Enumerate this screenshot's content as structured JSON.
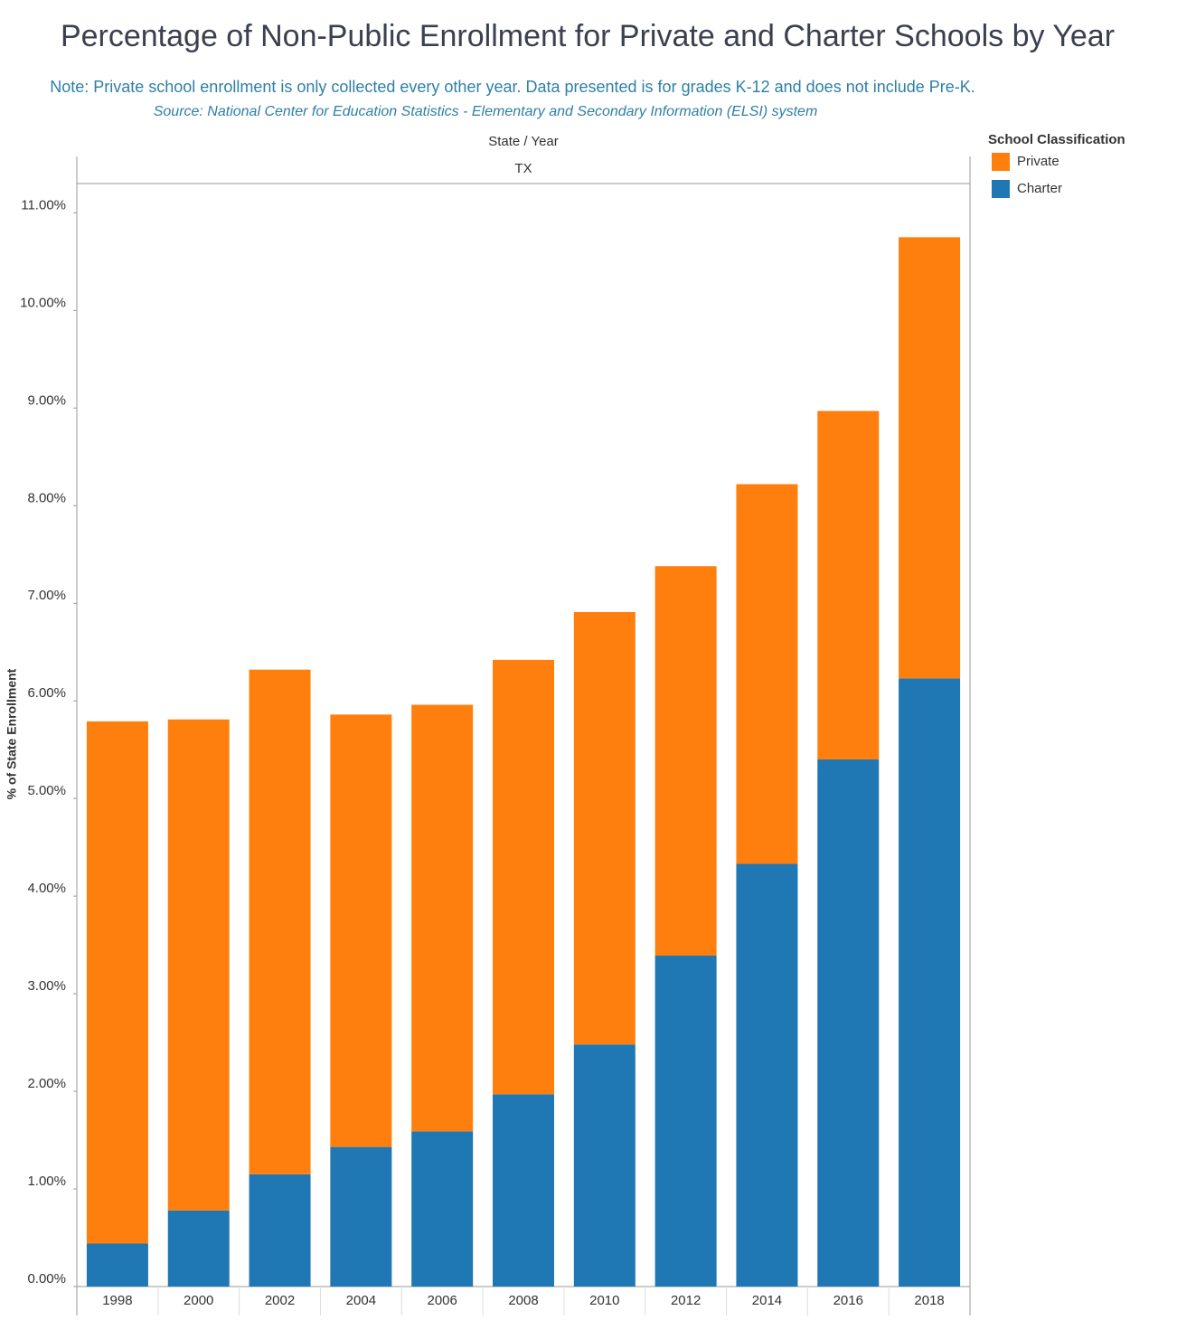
{
  "chart_data": {
    "type": "stacked_bar",
    "title": "Percentage of Non-Public Enrollment for Private and Charter Schools by Year",
    "note": "Note: Private school enrollment is only collected every other year. Data presented is for grades K-12 and does not include Pre-K.",
    "source": "Source: National Center for Education Statistics - Elementary and Secondary Information (ELSI) system",
    "x_header": "State  /  Year",
    "panel": "TX",
    "y_label": "% of State Enrollment",
    "legend_title": "School Classification",
    "legend_position": "right",
    "categories": [
      "1998",
      "2000",
      "2002",
      "2004",
      "2006",
      "2008",
      "2010",
      "2012",
      "2014",
      "2016",
      "2018"
    ],
    "series": [
      {
        "name": "Private",
        "color": "#ff7f0e",
        "values": [
          5.35,
          5.03,
          5.17,
          4.43,
          4.37,
          4.45,
          4.43,
          3.99,
          3.89,
          3.57,
          4.52
        ]
      },
      {
        "name": "Charter",
        "color": "#1f77b4",
        "values": [
          0.44,
          0.78,
          1.15,
          1.43,
          1.59,
          1.97,
          2.48,
          3.39,
          4.33,
          5.4,
          6.23
        ]
      }
    ],
    "ylim": [
      0,
      11.3
    ],
    "yticks": [
      {
        "value": 0,
        "label": "0.00%"
      },
      {
        "value": 1,
        "label": "1.00%"
      },
      {
        "value": 2,
        "label": "2.00%"
      },
      {
        "value": 3,
        "label": "3.00%"
      },
      {
        "value": 4,
        "label": "4.00%"
      },
      {
        "value": 5,
        "label": "5.00%"
      },
      {
        "value": 6,
        "label": "6.00%"
      },
      {
        "value": 7,
        "label": "7.00%"
      },
      {
        "value": 8,
        "label": "8.00%"
      },
      {
        "value": 9,
        "label": "9.00%"
      },
      {
        "value": 10,
        "label": "10.00%"
      },
      {
        "value": 11,
        "label": "11.00%"
      }
    ],
    "grid": false
  }
}
